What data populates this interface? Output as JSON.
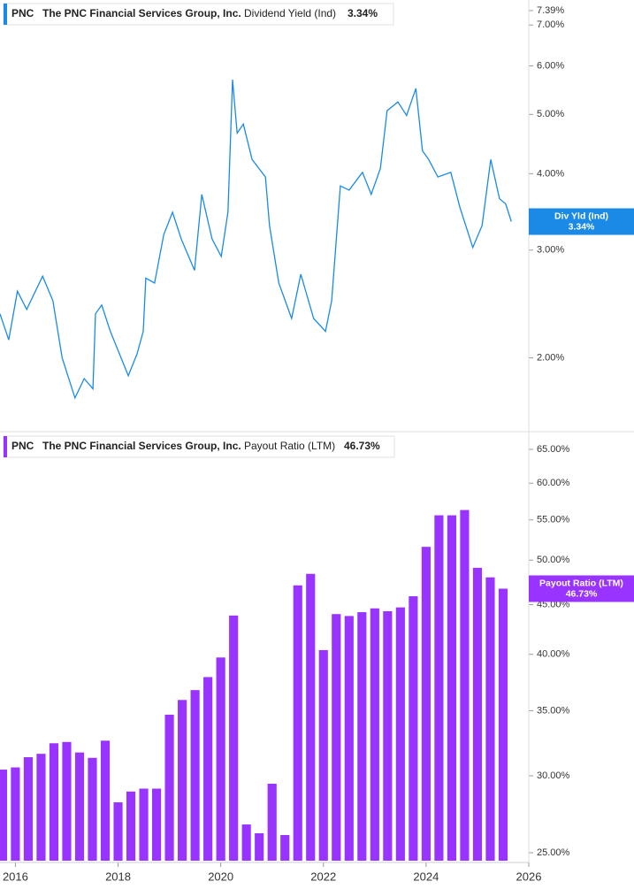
{
  "chart_data": [
    {
      "type": "line",
      "legend": {
        "ticker": "PNC",
        "company": "The PNC Financial Services Group, Inc.",
        "metric": "Dividend Yield (Ind)",
        "value_label": "3.34%"
      },
      "tag_name": "Div Yld (Ind)",
      "color": "#1a8ae6",
      "log_scale": true,
      "xlim": [
        2015.7,
        2026.0
      ],
      "ylim": [
        1.52,
        7.69
      ],
      "yticks": [
        {
          "value": 7.39,
          "label": "7.39%"
        },
        {
          "value": 7,
          "label": "7.00%"
        },
        {
          "value": 6,
          "label": "6.00%"
        },
        {
          "value": 5,
          "label": "5.00%"
        },
        {
          "value": 4,
          "label": "4.00%"
        },
        {
          "value": 3,
          "label": "3.00%"
        },
        {
          "value": 2,
          "label": "2.00%"
        }
      ],
      "x": [
        2015.7,
        2015.87,
        2016.04,
        2016.22,
        2016.53,
        2016.73,
        2016.91,
        2017.16,
        2017.34,
        2017.51,
        2017.56,
        2017.68,
        2017.85,
        2018.2,
        2018.37,
        2018.49,
        2018.54,
        2018.71,
        2018.89,
        2019.06,
        2019.23,
        2019.49,
        2019.63,
        2019.83,
        2020.01,
        2020.14,
        2020.23,
        2020.32,
        2020.44,
        2020.61,
        2020.87,
        2020.95,
        2021.13,
        2021.38,
        2021.56,
        2021.81,
        2022.04,
        2022.16,
        2022.33,
        2022.5,
        2022.76,
        2022.93,
        2023.11,
        2023.24,
        2023.45,
        2023.62,
        2023.8,
        2023.93,
        2024.05,
        2024.23,
        2024.48,
        2024.66,
        2024.91,
        2025.09,
        2025.26,
        2025.43,
        2025.55,
        2025.66
      ],
      "values": [
        2.36,
        2.14,
        2.57,
        2.4,
        2.72,
        2.48,
        2.0,
        1.72,
        1.85,
        1.78,
        2.36,
        2.44,
        2.21,
        1.87,
        2.03,
        2.21,
        2.7,
        2.65,
        3.18,
        3.46,
        3.13,
        2.78,
        3.7,
        3.13,
        2.93,
        3.46,
        5.7,
        4.66,
        4.82,
        4.22,
        3.95,
        3.29,
        2.65,
        2.32,
        2.74,
        2.32,
        2.21,
        2.48,
        3.82,
        3.76,
        4.02,
        3.7,
        4.08,
        5.07,
        5.24,
        4.98,
        5.51,
        4.36,
        4.22,
        3.95,
        4.02,
        3.52,
        3.03,
        3.29,
        4.22,
        3.64,
        3.57,
        3.34
      ]
    },
    {
      "type": "bar",
      "legend": {
        "ticker": "PNC",
        "company": "The PNC Financial Services Group, Inc.",
        "metric": "Payout Ratio (LTM)",
        "value_label": "46.73%"
      },
      "tag_name": "Payout Ratio (LTM)",
      "color": "#9933ff",
      "log_scale": true,
      "xlim": [
        2015.7,
        2026.0
      ],
      "xticks": [
        2016,
        2018,
        2020,
        2022,
        2024,
        2026
      ],
      "ylim": [
        24.43,
        67.5
      ],
      "yticks": [
        {
          "value": 65,
          "label": "65.00%"
        },
        {
          "value": 60,
          "label": "60.00%"
        },
        {
          "value": 55,
          "label": "55.00%"
        },
        {
          "value": 50,
          "label": "50.00%"
        },
        {
          "value": 45,
          "label": "45.00%"
        },
        {
          "value": 40,
          "label": "40.00%"
        },
        {
          "value": 35,
          "label": "35.00%"
        },
        {
          "value": 30,
          "label": "30.00%"
        },
        {
          "value": 25,
          "label": "25.00%"
        }
      ],
      "x": [
        2015.75,
        2016.0,
        2016.25,
        2016.5,
        2016.75,
        2017.0,
        2017.25,
        2017.5,
        2017.75,
        2018.0,
        2018.25,
        2018.5,
        2018.75,
        2019.0,
        2019.25,
        2019.5,
        2019.75,
        2020.0,
        2020.25,
        2020.5,
        2020.75,
        2021.0,
        2021.25,
        2021.5,
        2021.75,
        2022.0,
        2022.25,
        2022.5,
        2022.75,
        2023.0,
        2023.25,
        2023.5,
        2023.75,
        2024.0,
        2024.25,
        2024.5,
        2024.75,
        2025.0,
        2025.25,
        2025.5
      ],
      "values": [
        30.44,
        30.6,
        31.35,
        31.6,
        32.4,
        32.5,
        31.7,
        31.3,
        32.6,
        28.17,
        28.9,
        29.1,
        29.1,
        34.67,
        35.9,
        36.75,
        37.9,
        39.7,
        43.85,
        26.73,
        26.18,
        29.44,
        26.07,
        47.1,
        48.4,
        40.4,
        44.0,
        43.8,
        44.2,
        44.6,
        44.3,
        44.7,
        45.9,
        51.6,
        55.6,
        55.6,
        56.3,
        49.1,
        48.0,
        46.73
      ]
    }
  ]
}
